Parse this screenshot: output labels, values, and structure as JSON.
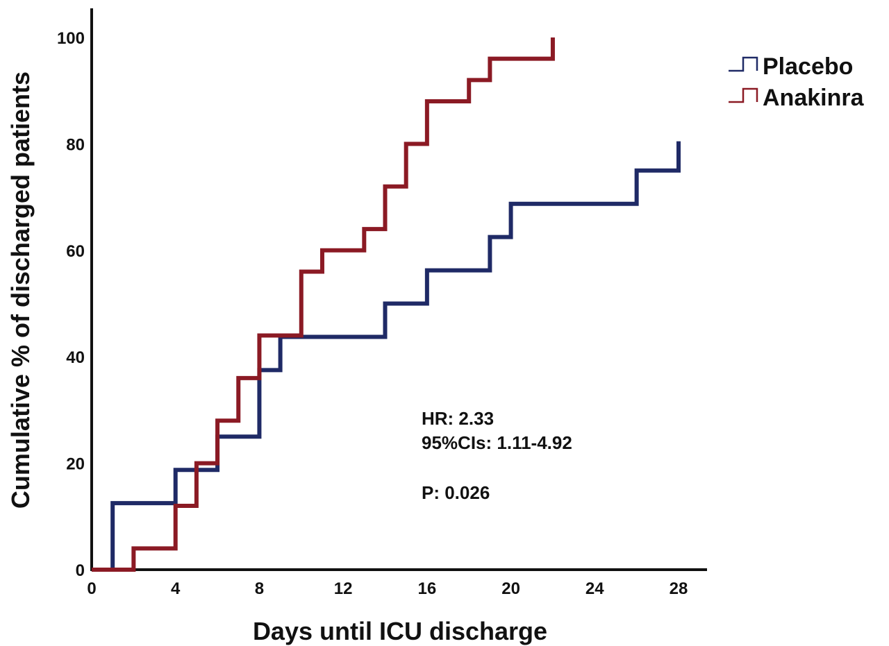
{
  "chart_data": {
    "type": "line",
    "step": true,
    "xlabel": "Days until ICU discharge",
    "ylabel": "Cumulative % of discharged patients",
    "xlim": [
      0,
      29.5
    ],
    "ylim": [
      0,
      100
    ],
    "xticks": [
      0,
      4,
      8,
      12,
      16,
      20,
      24,
      28
    ],
    "yticks": [
      0,
      20,
      40,
      60,
      80,
      100
    ],
    "grid": false,
    "legend_position": "top-right",
    "series": [
      {
        "name": "Placebo",
        "color": "#1f2a66",
        "points": [
          [
            0,
            0
          ],
          [
            1,
            12.5
          ],
          [
            4,
            18.75
          ],
          [
            6,
            25
          ],
          [
            8,
            37.5
          ],
          [
            9,
            43.75
          ],
          [
            14,
            50
          ],
          [
            16,
            56.25
          ],
          [
            19,
            62.5
          ],
          [
            20,
            68.75
          ],
          [
            26,
            75
          ],
          [
            28,
            80.5
          ]
        ],
        "end_x": 28
      },
      {
        "name": "Anakinra",
        "color": "#8b1a24",
        "points": [
          [
            0,
            0
          ],
          [
            2,
            4
          ],
          [
            4,
            12
          ],
          [
            5,
            20
          ],
          [
            6,
            28
          ],
          [
            7,
            36
          ],
          [
            8,
            44
          ],
          [
            10,
            56
          ],
          [
            11,
            60
          ],
          [
            13,
            64
          ],
          [
            14,
            72
          ],
          [
            15,
            80
          ],
          [
            16,
            88
          ],
          [
            18,
            92
          ],
          [
            19,
            96
          ],
          [
            22,
            100
          ]
        ],
        "end_x": 22
      }
    ],
    "annotations": [
      "HR: 2.33",
      "95%CIs: 1.11-4.92",
      "P: 0.026"
    ]
  }
}
